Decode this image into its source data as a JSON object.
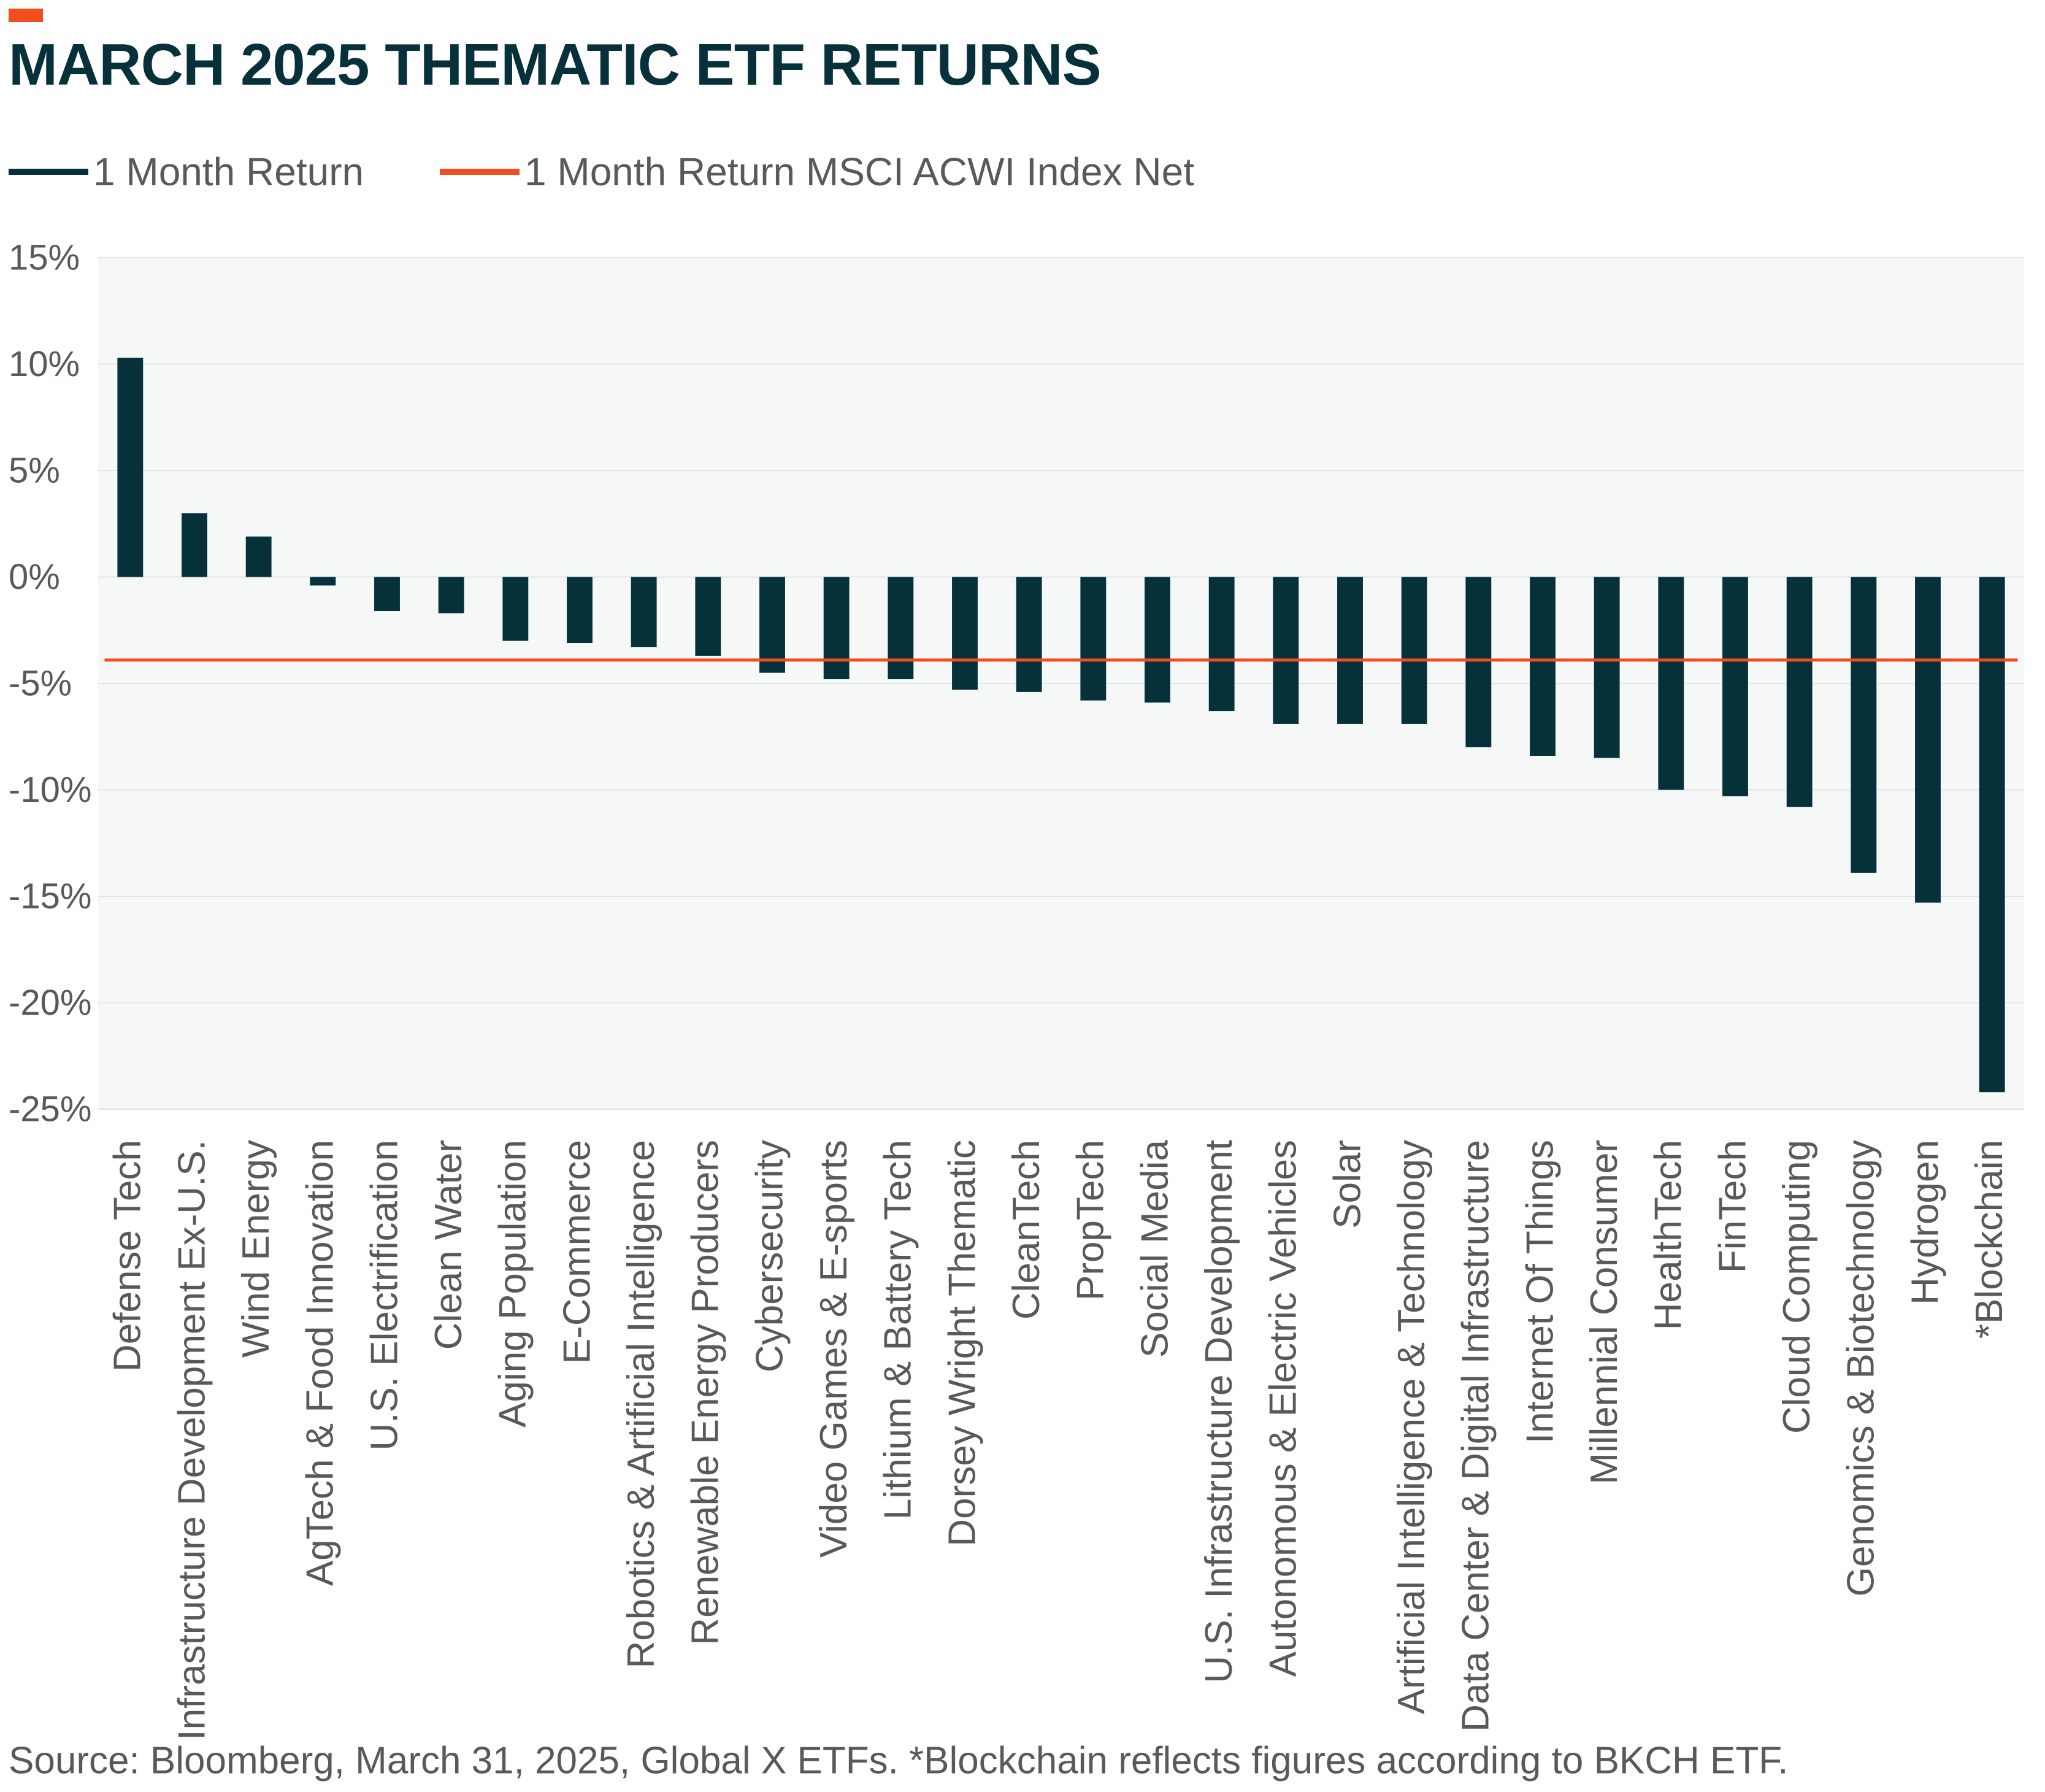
{
  "title": "MARCH 2025 THEMATIC ETF RETURNS",
  "source_note": "Source: Bloomberg, March 31, 2025, Global X ETFs. *Blockchain reflects figures according to BKCH ETF.",
  "colors": {
    "bar": "#06303a",
    "reference_line": "#f04e1c",
    "accent": "#f04e1c",
    "title": "#06303a",
    "text": "#58595b",
    "plot_background": "#f6f8f8",
    "grid": "#e1e5e6"
  },
  "legend": [
    {
      "label": "1 Month Return",
      "color": "#06303a"
    },
    {
      "label": "1 Month Return MSCI ACWI Index Net",
      "color": "#f04e1c"
    }
  ],
  "chart_data": {
    "type": "bar",
    "title": "MARCH 2025 THEMATIC ETF RETURNS",
    "ylim": [
      -25,
      15
    ],
    "yticks": [
      15,
      10,
      5,
      0,
      -5,
      -10,
      -15,
      -20,
      -25
    ],
    "ytick_labels": [
      "15%",
      "10%",
      "5%",
      "0%",
      "-5%",
      "-10%",
      "-15%",
      "-20%",
      "-25%"
    ],
    "grid": true,
    "legend_position": "top-left",
    "categories": [
      "Defense Tech",
      "Infrastructure Development Ex-U.S.",
      "Wind Energy",
      "AgTech & Food Innovation",
      "U.S. Electrification",
      "Clean Water",
      "Aging Population",
      "E-Commerce",
      "Robotics & Artificial Intelligence",
      "Renewable Energy Producers",
      "Cybersecurity",
      "Video Games & E-sports",
      "Lithium & Battery Tech",
      "Dorsey Wright Thematic",
      "CleanTech",
      "PropTech",
      "Social Media",
      "U.S. Infrastructure Development",
      "Autonomous & Electric Vehicles",
      "Solar",
      "Artificial Intelligence & Technology",
      "Data Center & Digital Infrastructure",
      "Internet Of Things",
      "Millennial Consumer",
      "HealthTech",
      "FinTech",
      "Cloud Computing",
      "Genomics & Biotechnology",
      "Hydrogen",
      "*Blockchain"
    ],
    "series": [
      {
        "name": "1 Month Return",
        "values": [
          10.3,
          3.0,
          1.9,
          -0.4,
          -1.6,
          -1.7,
          -3.0,
          -3.1,
          -3.3,
          -3.7,
          -4.5,
          -4.8,
          -4.8,
          -5.3,
          -5.4,
          -5.8,
          -5.9,
          -6.3,
          -6.9,
          -6.9,
          -6.9,
          -8.0,
          -8.4,
          -8.5,
          -10.0,
          -10.3,
          -10.8,
          -13.9,
          -15.3,
          -24.2
        ]
      }
    ],
    "reference_lines": [
      {
        "name": "1 Month Return MSCI ACWI Index Net",
        "value": -3.9
      }
    ]
  }
}
